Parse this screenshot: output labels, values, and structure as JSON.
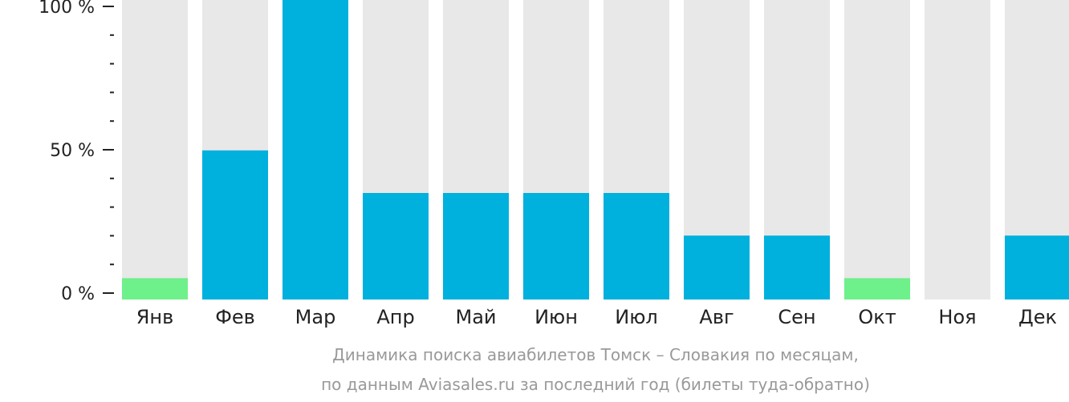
{
  "colors": {
    "background_bar": "#e8e8e8",
    "bar": "#00b0dd",
    "bar_low": "#6ef08a",
    "axis": "#222222",
    "caption": "#999999"
  },
  "chart_data": {
    "type": "bar",
    "categories": [
      "Янв",
      "Фев",
      "Мар",
      "Апр",
      "Май",
      "Июн",
      "Июл",
      "Авг",
      "Сен",
      "Окт",
      "Ноя",
      "Дек"
    ],
    "values": [
      7,
      49,
      100,
      35,
      35,
      35,
      35,
      21,
      21,
      7,
      0,
      21
    ],
    "bar_colors": [
      "#6ef08a",
      "#00b0dd",
      "#00b0dd",
      "#00b0dd",
      "#00b0dd",
      "#00b0dd",
      "#00b0dd",
      "#00b0dd",
      "#00b0dd",
      "#6ef08a",
      "#00b0dd",
      "#00b0dd"
    ],
    "ylim": [
      0,
      100
    ],
    "yticks": [
      {
        "value": 0,
        "label": "0 %"
      },
      {
        "value": 50,
        "label": "50 %"
      },
      {
        "value": 100,
        "label": "100 %"
      }
    ],
    "minor_ytick_values": [
      10,
      20,
      30,
      40,
      60,
      70,
      80,
      90
    ],
    "grid": false,
    "caption_line1": "Динамика поиска авиабилетов Томск – Словакия по месяцам,",
    "caption_line2": "по данным Aviasales.ru за последний год (билеты туда-обратно)"
  }
}
